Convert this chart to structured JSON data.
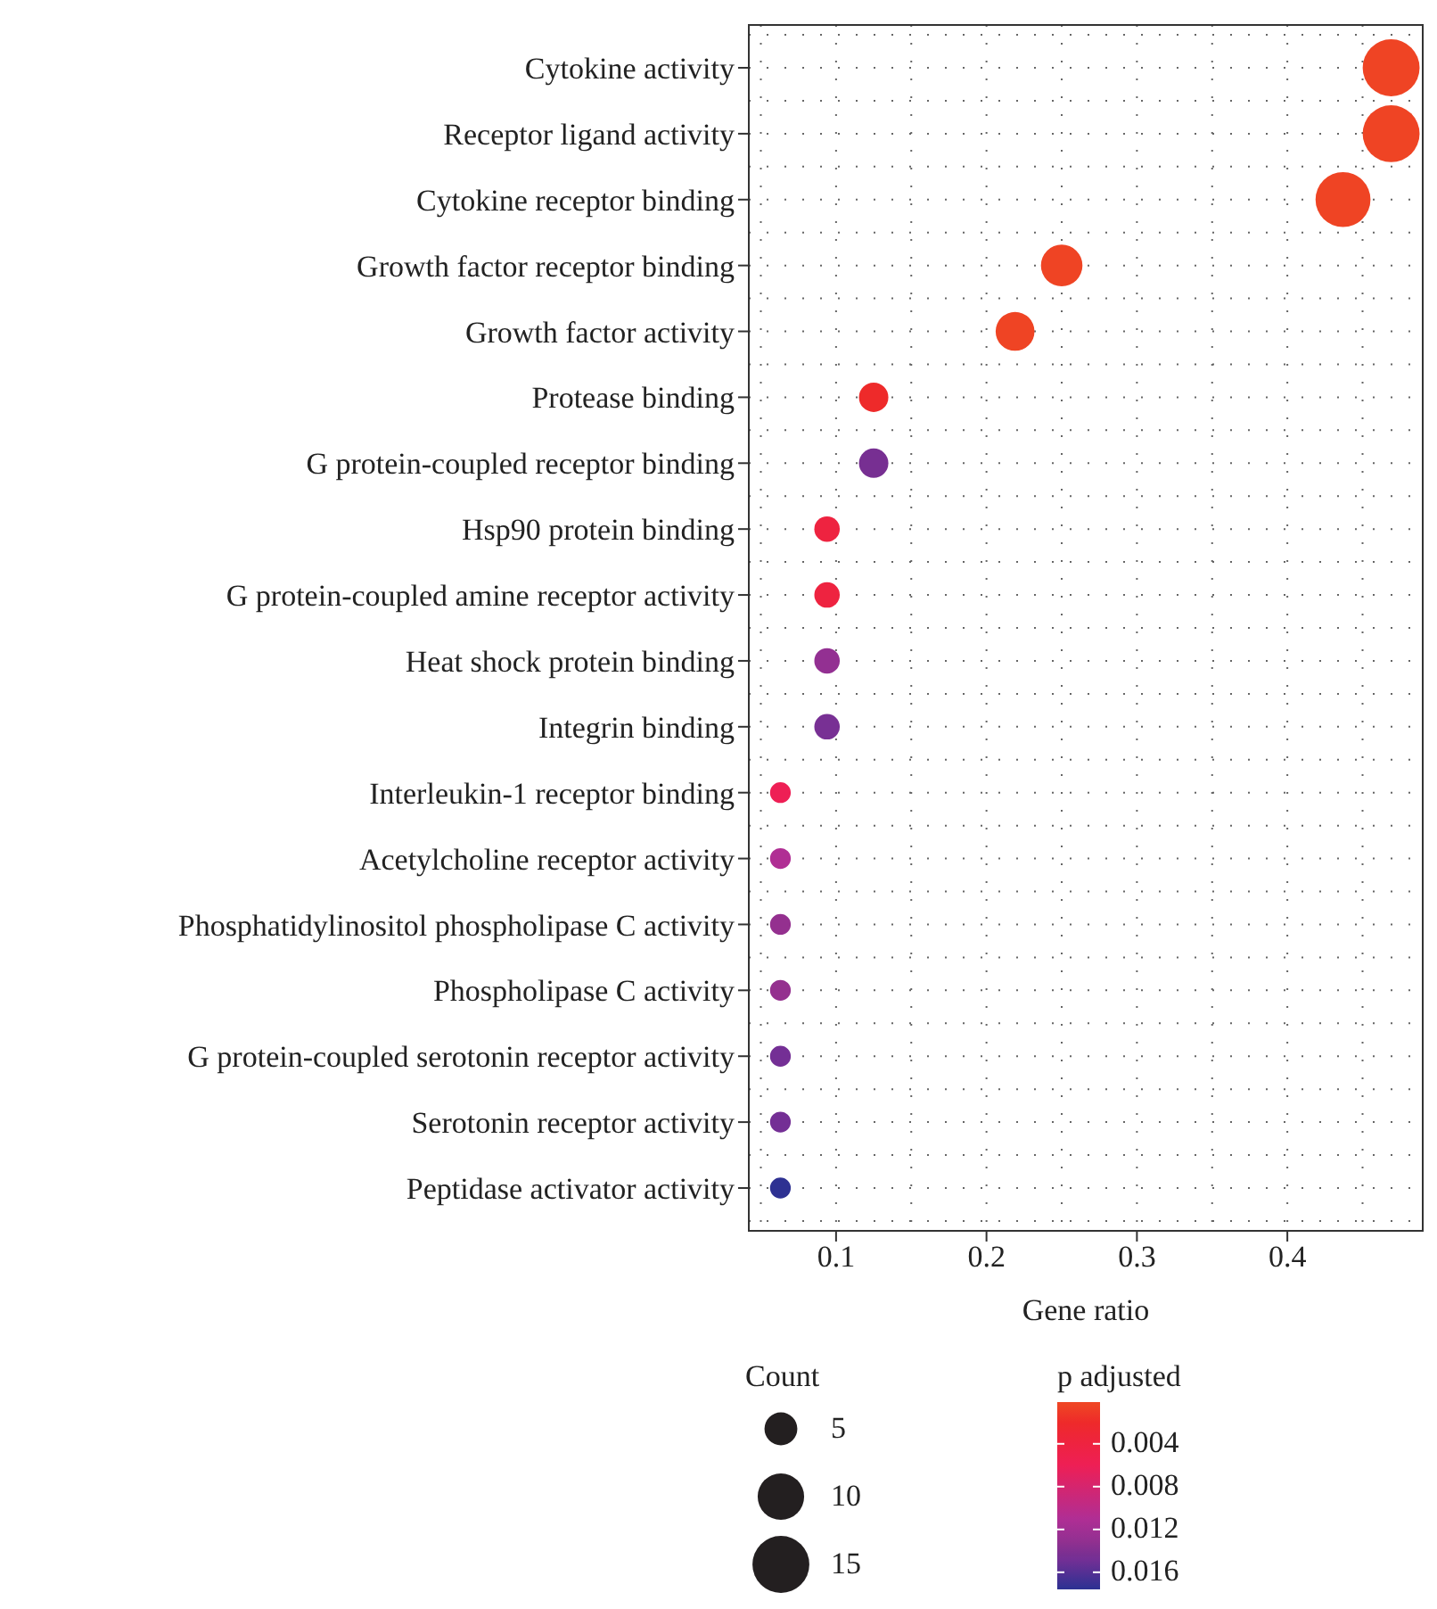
{
  "chart_data": {
    "type": "bubble",
    "xlabel": "Gene ratio",
    "legend_title": "Count",
    "clabel": "p adjusted",
    "orientation": "horizontal",
    "categories": [
      "Cytokine activity",
      "Receptor ligand activity",
      "Cytokine receptor binding",
      "Growth factor receptor binding",
      "Growth factor activity",
      "Protease binding",
      "G protein-coupled receptor binding",
      "Hsp90 protein binding",
      "G protein-coupled amine receptor activity",
      "Heat shock protein binding",
      "Integrin binding",
      "Interleukin-1 receptor binding",
      "Acetylcholine receptor activity",
      "Phosphatidylinositol phospholipase C activity",
      "Phospholipase C activity",
      "G protein-coupled serotonin receptor activity",
      "Serotonin receptor activity",
      "Peptidase activator activity"
    ],
    "values": [
      0.469,
      0.469,
      0.437,
      0.25,
      0.219,
      0.125,
      0.125,
      0.094,
      0.094,
      0.094,
      0.094,
      0.063,
      0.063,
      0.063,
      0.063,
      0.063,
      0.063,
      0.063
    ],
    "sizes": [
      15,
      15,
      14,
      8,
      7,
      4,
      4,
      3,
      3,
      3,
      3,
      2,
      2,
      2,
      2,
      2,
      2,
      2
    ],
    "size_legend": [
      5,
      10,
      15
    ],
    "cvalues": [
      0.0002,
      0.0002,
      0.0002,
      0.0004,
      0.0004,
      0.002,
      0.0145,
      0.004,
      0.004,
      0.013,
      0.0145,
      0.006,
      0.011,
      0.013,
      0.013,
      0.0148,
      0.0148,
      0.0175
    ],
    "colors": [
      "#ef4424",
      "#ef4424",
      "#ef4424",
      "#ef4424",
      "#ef4424",
      "#ee2a2a",
      "#772f92",
      "#ee2340",
      "#ee2340",
      "#933092",
      "#783094",
      "#ee1f55",
      "#b02e94",
      "#94308f",
      "#94308f",
      "#742f95",
      "#742f95",
      "#2e3192"
    ],
    "clim": [
      0.0001,
      0.0176
    ],
    "cticks": [
      0.004,
      0.008,
      0.012,
      0.016
    ],
    "xlim": [
      0.042,
      0.49
    ],
    "xticks": [
      0.1,
      0.2,
      0.3,
      0.4
    ],
    "grid": true
  }
}
